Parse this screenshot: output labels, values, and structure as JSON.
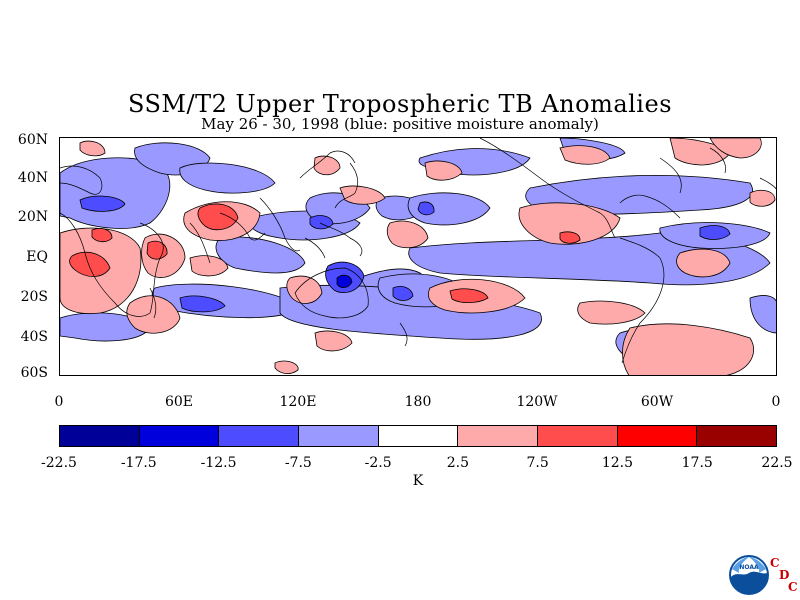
{
  "title": "SSM/T2 Upper Tropospheric TB Anomalies",
  "subtitle": "May 26 - 30, 1998 (blue: positive moisture anomaly)",
  "map": {
    "lat_labels": [
      "60N",
      "40N",
      "20N",
      "EQ",
      "20S",
      "40S",
      "60S"
    ],
    "lon_labels": [
      "0",
      "60E",
      "120E",
      "180",
      "120W",
      "60W",
      "0"
    ]
  },
  "colorbar": {
    "colors": [
      "#000099",
      "#0000dd",
      "#4d4dff",
      "#9999ff",
      "#ffffff",
      "#ffaaaa",
      "#ff4d4d",
      "#ff0000",
      "#990000"
    ],
    "ticks": [
      "-22.5",
      "-17.5",
      "-12.5",
      "-7.5",
      "-2.5",
      "2.5",
      "7.5",
      "12.5",
      "17.5",
      "22.5"
    ],
    "units": "K"
  },
  "logo": {
    "noaa_text": "NOAA",
    "cdc": [
      "C",
      "D",
      "C"
    ]
  }
}
